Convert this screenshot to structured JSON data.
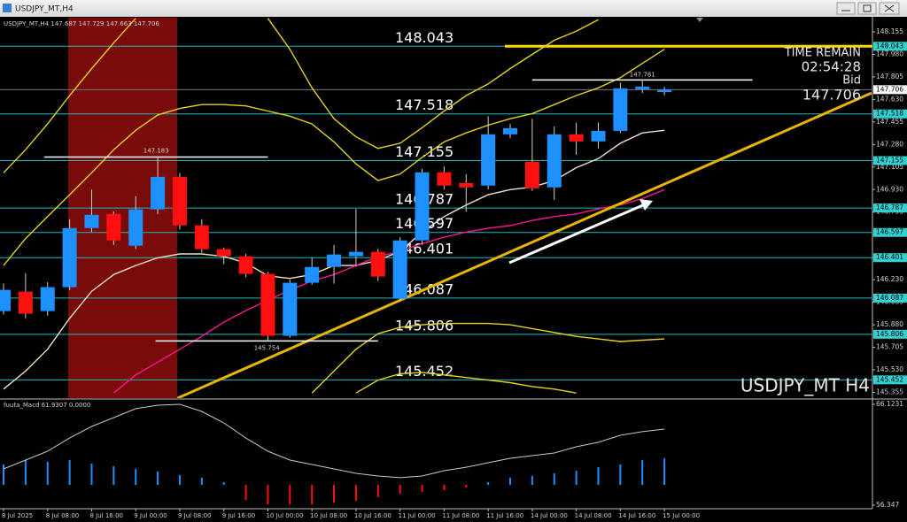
{
  "window": {
    "title": "USDJPY_MT,H4"
  },
  "chart_data": [
    {
      "type": "candlestick",
      "title": "USDJPY_MT,H4",
      "watermark": "USDJPY_MT H4",
      "x": [
        "8 Jul 2025",
        null,
        "8 Jul 08:00",
        null,
        "8 Jul 16:00",
        null,
        "9 Jul 00:00",
        null,
        "9 Jul 08:00",
        null,
        "9 Jul 16:00",
        null,
        "10 Jul 00:00",
        null,
        "10 Jul 08:00",
        null,
        "10 Jul 16:00",
        null,
        "11 Jul 00:00",
        null,
        "11 Jul 08:00",
        null,
        "11 Jul 16:00",
        null,
        "14 Jul 00:00",
        null,
        "14 Jul 08:00",
        null,
        "14 Jul 16:00",
        null,
        "15 Jul 00:00"
      ],
      "open": [
        145.986,
        146.137,
        145.986,
        146.172,
        146.631,
        146.741,
        146.494,
        146.776,
        147.029,
        146.652,
        146.467,
        146.412,
        146.275,
        145.794,
        146.206,
        146.329,
        146.412,
        146.446,
        146.082,
        146.535,
        147.064,
        146.981,
        146.961,
        147.359,
        147.146,
        146.947,
        147.359,
        147.304,
        147.386,
        147.709,
        147.687
      ],
      "high": [
        146.2,
        146.28,
        146.21,
        146.7,
        146.93,
        146.76,
        146.88,
        147.183,
        147.06,
        146.7,
        146.48,
        146.43,
        146.29,
        146.23,
        146.4,
        146.5,
        146.78,
        146.47,
        146.56,
        147.09,
        147.11,
        147.05,
        147.5,
        147.44,
        147.48,
        147.42,
        147.45,
        147.45,
        147.76,
        147.781,
        147.729
      ],
      "low": [
        145.96,
        145.93,
        145.95,
        146.15,
        146.6,
        146.5,
        146.47,
        146.74,
        146.62,
        146.44,
        146.35,
        146.25,
        145.754,
        145.78,
        146.19,
        146.2,
        146.33,
        146.22,
        146.06,
        146.5,
        146.93,
        146.76,
        146.93,
        147.33,
        146.92,
        146.85,
        147.2,
        147.25,
        147.37,
        147.68,
        147.663
      ],
      "close": [
        146.151,
        145.966,
        146.172,
        146.631,
        146.734,
        146.535,
        146.776,
        147.029,
        146.652,
        146.467,
        146.412,
        146.275,
        145.794,
        146.206,
        146.329,
        146.426,
        146.446,
        146.254,
        146.535,
        147.064,
        146.961,
        146.947,
        147.359,
        147.407,
        146.94,
        147.359,
        147.304,
        147.386,
        147.716,
        147.73,
        147.706
      ],
      "up_color": "#1e90ff",
      "down_color": "#ff1010",
      "ylim": [
        145.31,
        148.265
      ],
      "yticks": [
        148.155,
        {
          "value": 147.98,
          "label": "147.980"
        },
        147.805,
        {
          "value": 147.63,
          "label": "147.630"
        },
        147.455,
        {
          "value": 147.28,
          "label": "147.280"
        },
        147.105,
        {
          "value": 146.93,
          "label": "146.930"
        },
        146.755,
        {
          "value": 146.58,
          "label": "146.580"
        },
        146.405,
        {
          "value": 146.23,
          "label": "146.230"
        },
        146.055,
        {
          "value": 145.88,
          "label": "145.880"
        },
        145.705,
        {
          "value": 145.53,
          "label": "145.530"
        },
        145.355
      ],
      "levels": [
        148.043,
        147.518,
        147.155,
        146.787,
        146.597,
        146.401,
        146.087,
        145.806,
        145.452
      ],
      "level_color": "#22b8b8",
      "resistance_color": "#ffd800",
      "marked_prices": [
        147.183,
        145.754,
        147.781
      ],
      "series": [
        {
          "color": "#f0e0c8",
          "values": [
            145.38,
            145.52,
            145.69,
            145.93,
            146.14,
            146.27,
            146.34,
            146.4,
            146.43,
            146.43,
            146.41,
            146.36,
            146.26,
            146.24,
            146.27,
            146.34,
            146.34,
            146.38,
            146.45,
            146.6,
            146.72,
            146.81,
            146.89,
            146.93,
            146.95,
            147.0,
            147.1,
            147.17,
            147.29,
            147.37,
            147.39
          ]
        },
        {
          "color": "#ff1493",
          "values": [
            null,
            null,
            null,
            null,
            null,
            145.35,
            145.49,
            145.59,
            145.69,
            145.79,
            145.9,
            145.99,
            146.07,
            146.15,
            146.22,
            146.27,
            146.34,
            146.41,
            146.45,
            146.51,
            146.56,
            146.6,
            146.63,
            146.65,
            146.69,
            146.72,
            146.74,
            146.78,
            146.81,
            146.86,
            146.93
          ]
        },
        {
          "color": "#e6d21e",
          "values": [
            146.34,
            146.55,
            146.72,
            146.89,
            147.06,
            147.24,
            147.39,
            147.51,
            147.56,
            147.59,
            147.59,
            147.58,
            147.54,
            147.5,
            147.44,
            147.3,
            147.13,
            147.0,
            147.05,
            147.18,
            147.3,
            147.37,
            147.43,
            147.48,
            147.52,
            147.59,
            147.66,
            147.72,
            147.8,
            147.91,
            148.02
          ]
        },
        {
          "color": "#e6d21e",
          "values": [
            null,
            null,
            null,
            null,
            null,
            null,
            null,
            null,
            null,
            null,
            null,
            null,
            null,
            null,
            145.35,
            145.52,
            145.69,
            145.81,
            145.86,
            145.88,
            145.89,
            145.89,
            145.89,
            145.88,
            145.85,
            145.82,
            145.79,
            145.77,
            145.75,
            145.76,
            145.77
          ]
        },
        {
          "color": "#e6d21e",
          "values": [
            147.06,
            147.24,
            147.44,
            147.66,
            147.87,
            148.07,
            148.26,
            null,
            null,
            null,
            null,
            null,
            148.26,
            148.02,
            147.72,
            147.48,
            147.34,
            147.25,
            147.29,
            147.41,
            147.54,
            147.66,
            147.75,
            147.87,
            147.98,
            148.09,
            148.16,
            148.25,
            null,
            null,
            null
          ]
        },
        {
          "color": "#e6d21e",
          "values": [
            null,
            null,
            null,
            null,
            null,
            null,
            null,
            null,
            null,
            null,
            null,
            null,
            null,
            null,
            null,
            null,
            145.35,
            145.45,
            145.5,
            145.51,
            145.49,
            145.47,
            145.45,
            145.43,
            145.4,
            145.38,
            145.35,
            null,
            null,
            null,
            null
          ]
        }
      ],
      "trendline": {
        "color": "#e8b400",
        "x": [
          7.9,
          39.4
        ],
        "values": [
          145.31,
          147.68
        ]
      },
      "time_remain_label": "TIME REMAIN",
      "time_remain": "02:54:28",
      "bid_label": "Bid",
      "bid": 147.706
    },
    {
      "type": "macd",
      "label": "fuuta_Macd 61.9307 0.0000",
      "ylim": [
        56.347,
        66.1231
      ],
      "yticks": [
        66.1231,
        56.347
      ],
      "baseline": 58.32,
      "up_color": "#1e90ff",
      "down_color": "#ff1010",
      "histogram": [
        60.29,
        60.72,
        60.55,
        60.72,
        60.38,
        60.12,
        59.86,
        59.61,
        59.26,
        59.01,
        58.58,
        56.86,
        56.43,
        56.43,
        56.43,
        56.6,
        56.78,
        57.12,
        57.46,
        57.63,
        57.8,
        58.06,
        58.58,
        59.01,
        59.18,
        59.43,
        59.69,
        60.03,
        60.29,
        60.72,
        60.89
      ],
      "signal": {
        "color": "#c8c8c8",
        "values": [
          59.86,
          60.72,
          61.58,
          62.86,
          63.98,
          64.84,
          65.7,
          66.04,
          66.12,
          65.44,
          64.32,
          62.86,
          61.58,
          60.72,
          60.29,
          59.86,
          59.43,
          59.18,
          59.01,
          59.18,
          59.69,
          60.03,
          60.46,
          60.89,
          61.15,
          61.41,
          62.01,
          62.44,
          63.12,
          63.47,
          63.72
        ]
      }
    }
  ]
}
